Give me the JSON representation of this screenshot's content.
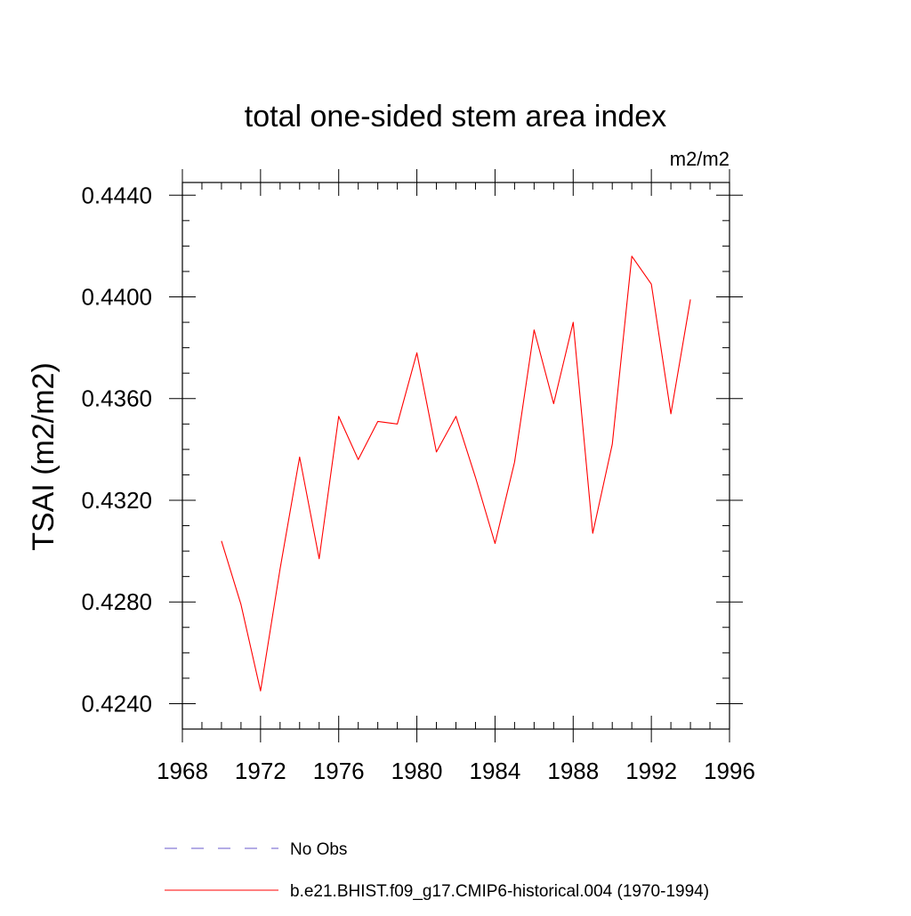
{
  "chart_data": {
    "type": "line",
    "title": "total one-sided stem area index",
    "units_label": "m2/m2",
    "ylabel": "TSAI  (m2/m2)",
    "xlabel": "",
    "xlim": [
      1968,
      1996
    ],
    "ylim": [
      0.423,
      0.4445
    ],
    "x_ticks": [
      1968,
      1972,
      1976,
      1980,
      1984,
      1988,
      1992,
      1996
    ],
    "x_tick_labels": [
      "1968",
      "1972",
      "1976",
      "1980",
      "1984",
      "1988",
      "1992",
      "1996"
    ],
    "x_minor_step": 1,
    "y_ticks": [
      0.424,
      0.428,
      0.432,
      0.436,
      0.44,
      0.444
    ],
    "y_tick_labels": [
      "0.4240",
      "0.4280",
      "0.4320",
      "0.4360",
      "0.4400",
      "0.4440"
    ],
    "y_minor_step": 0.001,
    "grid": false,
    "legend_position": "bottom",
    "series": [
      {
        "name": "b.e21.BHIST.f09_g17.CMIP6-historical.004 (1970-1994)",
        "color": "#ff0000",
        "x": [
          1970,
          1971,
          1972,
          1973,
          1974,
          1975,
          1976,
          1977,
          1978,
          1979,
          1980,
          1981,
          1982,
          1983,
          1984,
          1985,
          1986,
          1987,
          1988,
          1989,
          1990,
          1991,
          1992,
          1993,
          1994
        ],
        "values": [
          0.4304,
          0.4279,
          0.4245,
          0.4293,
          0.4337,
          0.4297,
          0.4353,
          0.4336,
          0.4351,
          0.435,
          0.4378,
          0.4339,
          0.4353,
          0.4329,
          0.4303,
          0.4335,
          0.4387,
          0.4358,
          0.439,
          0.4307,
          0.4342,
          0.4416,
          0.4405,
          0.4354,
          0.4399
        ]
      }
    ],
    "legend": [
      {
        "label": "No Obs",
        "style": "dashed",
        "color": "#6a5acd"
      },
      {
        "label": "b.e21.BHIST.f09_g17.CMIP6-historical.004 (1970-1994)",
        "style": "solid",
        "color": "#ff0000"
      }
    ]
  }
}
